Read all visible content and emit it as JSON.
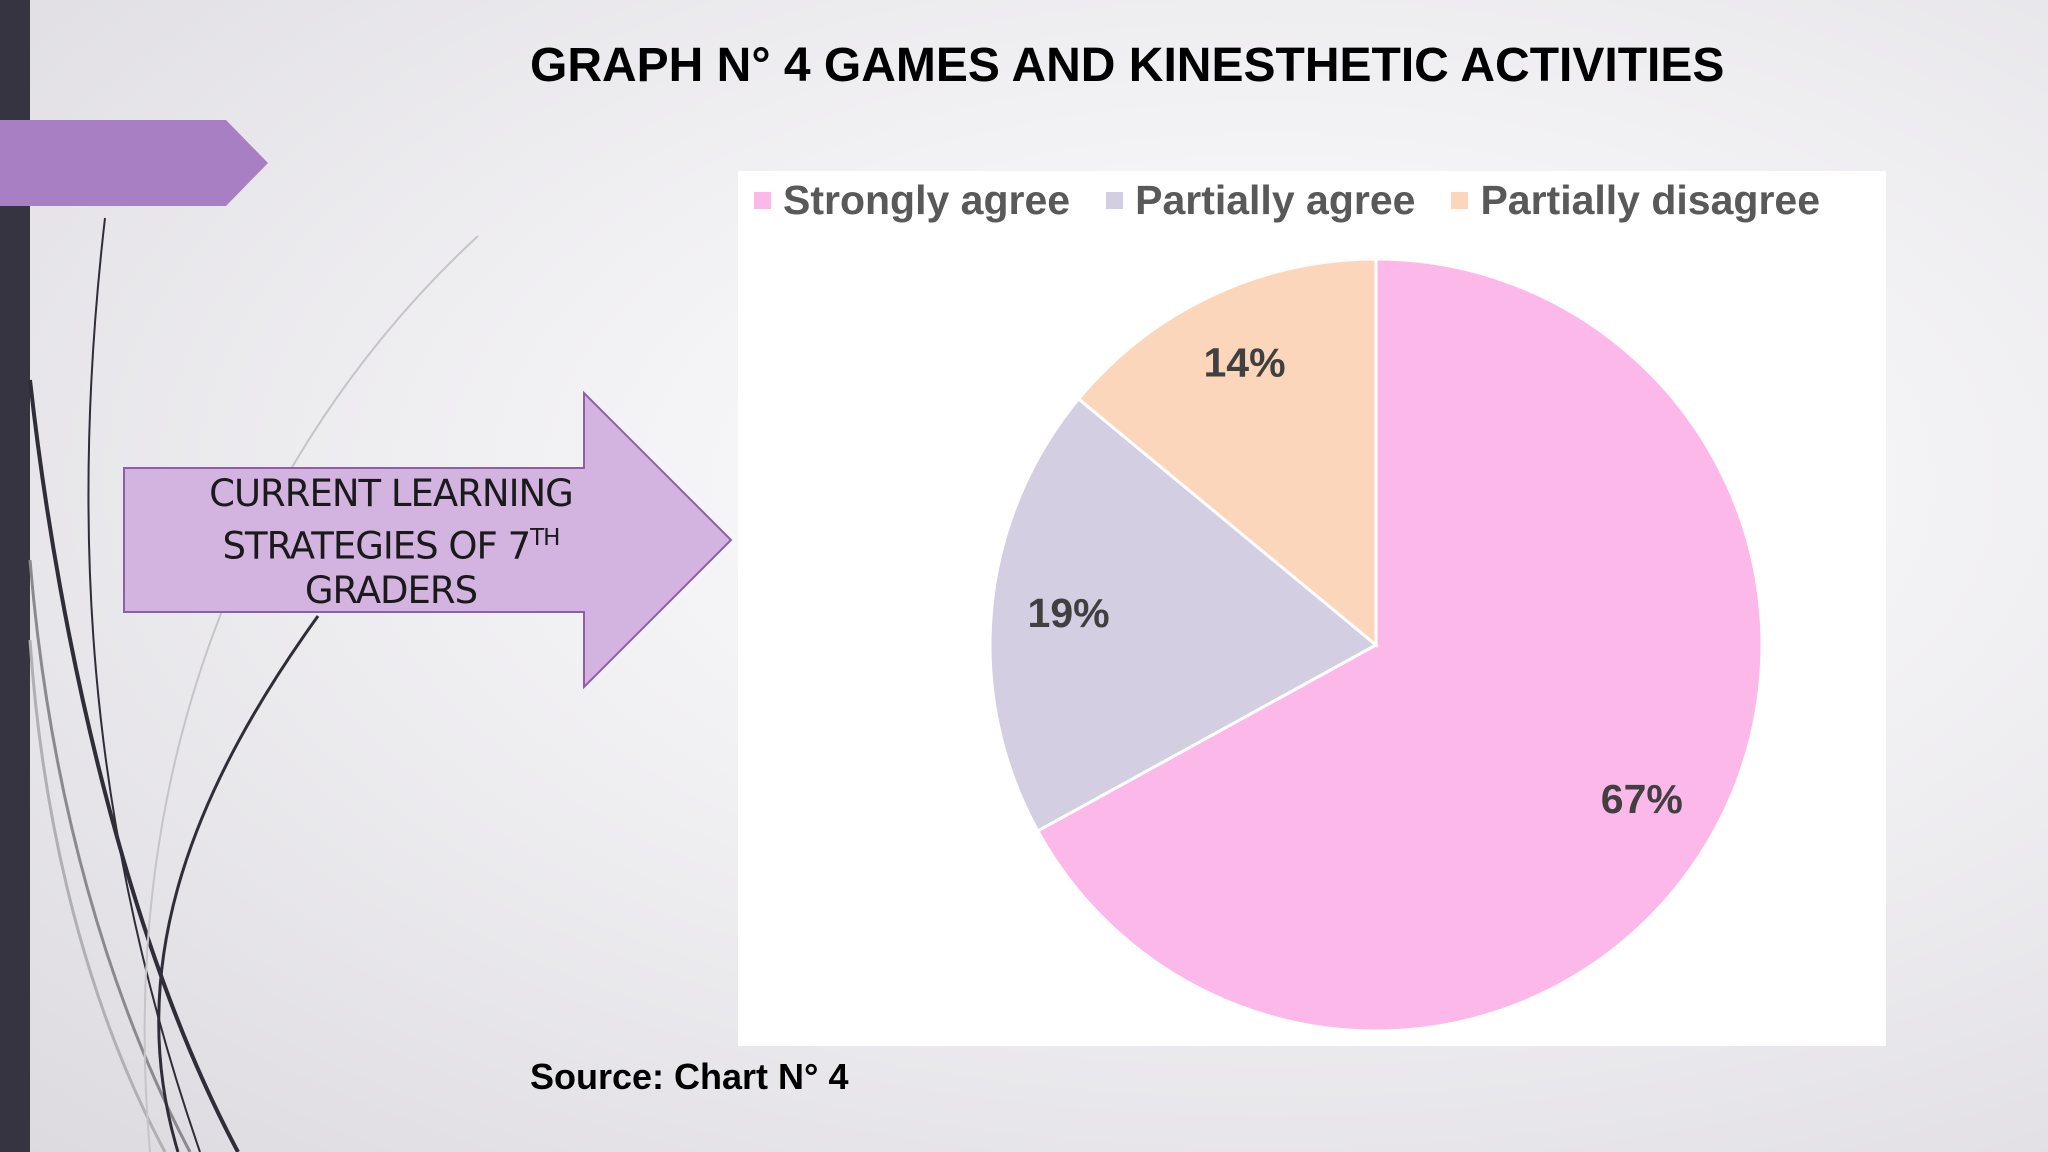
{
  "slide": {
    "title": "GRAPH N° 4 GAMES AND KINESTHETIC ACTIVITIES",
    "source": "Source: Chart N° 4"
  },
  "callout": {
    "line1": "CURRENT LEARNING",
    "line2": "STRATEGIES OF 7",
    "line2_sup": "TH",
    "line3": "GRADERS"
  },
  "colors": {
    "left_bar": "#363441",
    "accent_purple": "#a97fc4",
    "callout_fill": "#d3b4e0",
    "callout_border": "#8f5ea8"
  },
  "chart_data": {
    "type": "pie",
    "title": "",
    "categories": [
      "Strongly agree",
      "Partially agree",
      "Partially disagree"
    ],
    "values": [
      67,
      19,
      14
    ],
    "labels": [
      "67%",
      "19%",
      "14%"
    ],
    "colors": [
      "#fdb8ea",
      "#d3cee2",
      "#fbd6bb"
    ],
    "start_angle_deg": 0,
    "direction": "clockwise",
    "legend": "top",
    "label_color": "#404040"
  }
}
